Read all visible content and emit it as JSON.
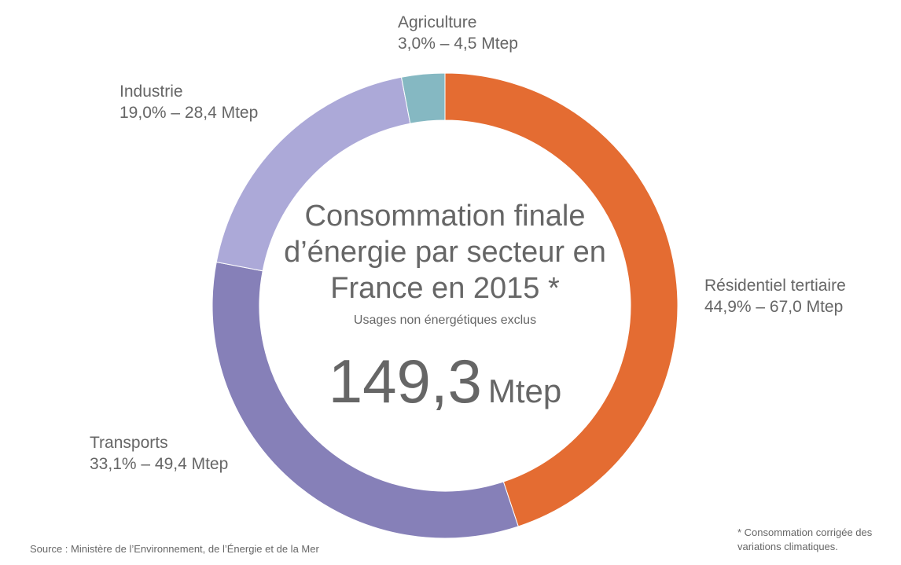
{
  "chart_data": {
    "type": "pie",
    "variant": "donut",
    "title": "Consommation finale d’énergie par secteur en France en 2015 *",
    "subtitle": "Usages non énergétiques exclus",
    "total": {
      "value": "149,3",
      "unit": "Mtep"
    },
    "slices": [
      {
        "name": "Résidentiel tertiaire",
        "percent": 44.9,
        "value": 67.0,
        "label": "44,9% – 67,0 Mtep",
        "color": "#E46C32"
      },
      {
        "name": "Transports",
        "percent": 33.1,
        "value": 49.4,
        "label": "33,1% – 49,4 Mtep",
        "color": "#8680B8"
      },
      {
        "name": "Industrie",
        "percent": 19.0,
        "value": 28.4,
        "label": "19,0% – 28,4 Mtep",
        "color": "#ACA9D8"
      },
      {
        "name": "Agriculture",
        "percent": 3.0,
        "value": 4.5,
        "label": "3,0% – 4,5 Mtep",
        "color": "#85B8C2"
      }
    ],
    "footnote": "* Consommation corrigée des variations climatiques.",
    "source": "Source : Ministère de l’Environnement, de l’Énergie et de la Mer"
  }
}
